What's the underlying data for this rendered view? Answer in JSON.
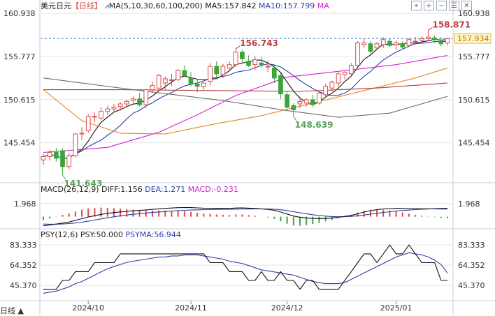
{
  "header": {
    "symbol": "美元日元",
    "period_tag": "【日线】",
    "ma_label": "MA(5,10,30,60,100,200)",
    "ma5": "MA5:157.842",
    "ma10": "MA10:157.799",
    "ma_more": "MA"
  },
  "toolbar": [
    "crosshair-icon",
    "zoom-in-icon",
    "zoom-out-icon",
    "settings-icon",
    "close-icon"
  ],
  "toolbar_glyphs": [
    "⌖",
    "+",
    "−",
    "☰",
    "✕"
  ],
  "scale_button": "日线 ▲",
  "macd_header": {
    "name": "MACD(26,12,9)",
    "diff": "DIFF:1.156",
    "dea": "DEA:1.271",
    "macd": "MACD:-0.231"
  },
  "psy_header": {
    "name": "PSY(12,6)",
    "psy": "PSY:50.000",
    "psyma": "PSYMA:56.944"
  },
  "colors": {
    "up": "#d84a4a",
    "down": "#3aa53a",
    "ma5": "#111111",
    "ma10": "#2c3fa8",
    "ma30": "#d21fd2",
    "ma60": "#e08a1e",
    "ma100": "#b83a3a",
    "ma200": "#6d6d6d",
    "dea": "#2c3fa8",
    "diff": "#111111",
    "psy": "#111111",
    "psyma": "#2c3fa8",
    "label_hi": "#c03a3a",
    "label_lo": "#5aa05a",
    "grid": "#e4e4ec",
    "last_price_bg": "#fff3c4",
    "last_price_fg": "#c07a00"
  },
  "chart_data": [
    {
      "type": "candlestick",
      "title": "美元日元 日线",
      "x_ticks": [
        "2024/10",
        "2024/11",
        "2024/12",
        "2025/01"
      ],
      "y_ticks": [
        160.938,
        155.777,
        150.615,
        145.454
      ],
      "ylim": [
        141.0,
        161.2
      ],
      "last_price": 157.934,
      "annotations": [
        {
          "text": "158.871",
          "type": "high",
          "bar": 60
        },
        {
          "text": "156.743",
          "type": "high",
          "bar": 30
        },
        {
          "text": "148.639",
          "type": "low",
          "bar": 39
        },
        {
          "text": "141.643",
          "type": "low",
          "bar": 3
        }
      ],
      "candles": [
        [
          143.4,
          144.1,
          142.8,
          143.8
        ],
        [
          143.8,
          144.6,
          143.3,
          144.3
        ],
        [
          144.3,
          144.8,
          143.2,
          143.6
        ],
        [
          144.5,
          144.8,
          141.6,
          142.6
        ],
        [
          142.6,
          144.2,
          142.3,
          143.9
        ],
        [
          143.9,
          146.6,
          143.7,
          146.5
        ],
        [
          146.5,
          147.3,
          145.8,
          146.6
        ],
        [
          146.9,
          148.9,
          146.6,
          148.6
        ],
        [
          148.6,
          149.1,
          147.9,
          148.6
        ],
        [
          148.4,
          149.7,
          148.2,
          149.2
        ],
        [
          149.2,
          149.9,
          148.8,
          149.5
        ],
        [
          149.5,
          150.1,
          149.0,
          149.7
        ],
        [
          149.8,
          150.3,
          149.3,
          150.1
        ],
        [
          150.1,
          150.6,
          149.7,
          150.4
        ],
        [
          150.5,
          151.0,
          150.1,
          150.7
        ],
        [
          150.7,
          151.4,
          149.8,
          150.0
        ],
        [
          150.0,
          151.9,
          149.6,
          151.8
        ],
        [
          151.8,
          152.8,
          151.4,
          152.3
        ],
        [
          152.0,
          153.7,
          151.6,
          153.5
        ],
        [
          152.6,
          153.4,
          151.8,
          153.1
        ],
        [
          152.9,
          153.7,
          152.2,
          153.0
        ],
        [
          153.0,
          154.3,
          152.8,
          154.1
        ],
        [
          154.1,
          154.7,
          153.3,
          153.5
        ],
        [
          153.2,
          153.9,
          152.2,
          152.5
        ],
        [
          152.5,
          153.1,
          151.5,
          152.2
        ],
        [
          152.2,
          152.7,
          151.8,
          152.6
        ],
        [
          152.8,
          155.0,
          152.3,
          154.6
        ],
        [
          154.6,
          155.2,
          153.3,
          153.7
        ],
        [
          153.6,
          154.9,
          153.2,
          154.6
        ],
        [
          154.4,
          155.2,
          154.0,
          154.8
        ],
        [
          154.8,
          156.7,
          154.5,
          156.3
        ],
        [
          156.3,
          156.6,
          155.0,
          155.5
        ],
        [
          155.2,
          155.9,
          154.5,
          154.7
        ],
        [
          154.8,
          155.8,
          154.1,
          155.4
        ],
        [
          155.0,
          155.7,
          154.4,
          154.8
        ],
        [
          154.6,
          155.3,
          153.9,
          154.6
        ],
        [
          154.4,
          154.9,
          152.6,
          153.2
        ],
        [
          153.5,
          153.8,
          150.7,
          151.3
        ],
        [
          151.2,
          151.6,
          149.4,
          149.7
        ],
        [
          149.9,
          150.2,
          148.6,
          149.4
        ],
        [
          150.1,
          151.0,
          149.6,
          150.4
        ],
        [
          150.2,
          150.8,
          149.8,
          150.6
        ],
        [
          150.6,
          151.2,
          149.7,
          150.0
        ],
        [
          150.2,
          151.6,
          150.0,
          151.4
        ],
        [
          151.2,
          152.5,
          151.0,
          152.2
        ],
        [
          152.0,
          152.9,
          151.6,
          152.7
        ],
        [
          152.6,
          153.9,
          152.2,
          153.7
        ],
        [
          153.6,
          154.1,
          153.0,
          153.9
        ],
        [
          153.7,
          155.0,
          153.3,
          154.7
        ],
        [
          154.7,
          157.6,
          154.5,
          157.4
        ],
        [
          157.2,
          157.9,
          156.8,
          157.4
        ],
        [
          157.3,
          157.6,
          156.0,
          156.4
        ],
        [
          156.8,
          157.5,
          156.5,
          157.3
        ],
        [
          157.2,
          158.1,
          156.8,
          157.8
        ],
        [
          157.6,
          158.0,
          156.9,
          157.1
        ],
        [
          157.2,
          157.7,
          156.5,
          157.4
        ],
        [
          157.3,
          157.6,
          156.6,
          156.9
        ],
        [
          157.1,
          158.0,
          156.9,
          157.8
        ],
        [
          157.6,
          158.1,
          157.2,
          157.6
        ],
        [
          157.7,
          158.2,
          157.4,
          157.9
        ],
        [
          157.9,
          158.9,
          157.6,
          158.1
        ],
        [
          158.0,
          158.3,
          157.4,
          157.8
        ],
        [
          157.6,
          158.1,
          157.0,
          157.3
        ],
        [
          157.4,
          158.0,
          157.1,
          157.9
        ]
      ],
      "ma_series": [
        {
          "name": "MA30",
          "values": [
            [
              0,
              144.3
            ],
            [
              10,
              144.9
            ],
            [
              18,
              146.7
            ],
            [
              24,
              148.8
            ],
            [
              30,
              151.1
            ],
            [
              38,
              153.3
            ],
            [
              46,
              154.0
            ],
            [
              55,
              154.8
            ],
            [
              63,
              155.9
            ]
          ]
        },
        {
          "name": "MA60",
          "values": [
            [
              0,
              151.8
            ],
            [
              6,
              148.1
            ],
            [
              12,
              146.6
            ],
            [
              19,
              146.5
            ],
            [
              26,
              147.6
            ],
            [
              34,
              148.7
            ],
            [
              42,
              150.2
            ],
            [
              50,
              151.7
            ],
            [
              58,
              153.2
            ],
            [
              63,
              154.4
            ]
          ]
        },
        {
          "name": "MA100",
          "values": [
            [
              0,
              151.8
            ],
            [
              12,
              151.8
            ],
            [
              26,
              151.7
            ],
            [
              40,
              151.6
            ],
            [
              52,
              152.0
            ],
            [
              63,
              152.6
            ]
          ]
        },
        {
          "name": "MA200",
          "values": [
            [
              0,
              153.2
            ],
            [
              14,
              151.8
            ],
            [
              28,
              150.5
            ],
            [
              38,
              149.3
            ],
            [
              46,
              148.5
            ],
            [
              54,
              149.0
            ],
            [
              63,
              151.0
            ]
          ]
        }
      ]
    },
    {
      "type": "macd",
      "title": "MACD(26,12,9)",
      "y_ticks": [
        1.968
      ],
      "ylim": [
        -1.6,
        3.2
      ],
      "diff": [
        -1.35,
        -1.25,
        -1.1,
        -0.95,
        -0.8,
        -0.55,
        -0.3,
        -0.05,
        0.15,
        0.35,
        0.5,
        0.62,
        0.72,
        0.8,
        0.88,
        0.95,
        1.02,
        1.1,
        1.18,
        1.25,
        1.3,
        1.35,
        1.37,
        1.36,
        1.32,
        1.28,
        1.27,
        1.26,
        1.25,
        1.24,
        1.3,
        1.32,
        1.28,
        1.24,
        1.18,
        1.1,
        0.95,
        0.7,
        0.4,
        0.1,
        -0.08,
        -0.18,
        -0.25,
        -0.28,
        -0.26,
        -0.2,
        -0.1,
        0.05,
        0.2,
        0.45,
        0.7,
        0.9,
        1.05,
        1.15,
        1.22,
        1.25,
        1.24,
        1.22,
        1.2,
        1.19,
        1.18,
        1.17,
        1.16,
        1.156
      ],
      "dea": [
        -1.1,
        -1.12,
        -1.12,
        -1.09,
        -1.03,
        -0.94,
        -0.82,
        -0.67,
        -0.5,
        -0.33,
        -0.16,
        -0.01,
        0.13,
        0.25,
        0.36,
        0.46,
        0.55,
        0.63,
        0.71,
        0.78,
        0.85,
        0.91,
        0.96,
        1.0,
        1.03,
        1.05,
        1.07,
        1.09,
        1.1,
        1.11,
        1.13,
        1.15,
        1.16,
        1.17,
        1.17,
        1.16,
        1.12,
        1.04,
        0.92,
        0.76,
        0.59,
        0.44,
        0.3,
        0.18,
        0.09,
        0.03,
        0.0,
        0.01,
        0.05,
        0.13,
        0.25,
        0.38,
        0.51,
        0.64,
        0.75,
        0.85,
        0.93,
        1.0,
        1.06,
        1.11,
        1.16,
        1.2,
        1.24,
        1.271
      ]
    },
    {
      "type": "line",
      "title": "PSY(12,6)",
      "y_ticks": [
        83.333,
        64.352,
        45.37
      ],
      "ylim": [
        33,
        88
      ],
      "series": [
        {
          "name": "PSY",
          "values": [
            41.7,
            41.7,
            41.7,
            50,
            50,
            58.3,
            58.3,
            58.3,
            66.7,
            66.7,
            66.7,
            66.7,
            75,
            75,
            75,
            75,
            75,
            75,
            75,
            75,
            75,
            75,
            75,
            75,
            75,
            75,
            66.7,
            66.7,
            66.7,
            58.3,
            58.3,
            58.3,
            50,
            50,
            58.3,
            50,
            50,
            58.3,
            50,
            50,
            41.7,
            50,
            50,
            41.7,
            41.7,
            41.7,
            41.7,
            50,
            58.3,
            66.7,
            75,
            75,
            66.7,
            75,
            83.3,
            75,
            75,
            83.3,
            75,
            66.7,
            66.7,
            66.7,
            50,
            50
          ]
        },
        {
          "name": "PSYMA",
          "values": [
            38,
            39,
            40,
            42,
            44,
            47,
            49,
            52,
            55,
            58,
            61,
            63,
            65,
            67,
            68,
            69,
            70,
            71,
            72,
            72,
            73,
            73,
            74,
            74,
            74,
            73,
            72,
            71,
            70,
            68,
            67,
            66,
            64,
            62,
            60,
            59,
            58,
            57,
            56,
            55,
            53,
            51,
            49,
            48,
            47,
            47,
            47,
            48,
            51,
            54,
            57,
            60,
            63,
            66,
            69,
            72,
            74,
            76,
            75,
            74,
            72,
            69,
            65,
            56.944
          ]
        }
      ]
    }
  ]
}
